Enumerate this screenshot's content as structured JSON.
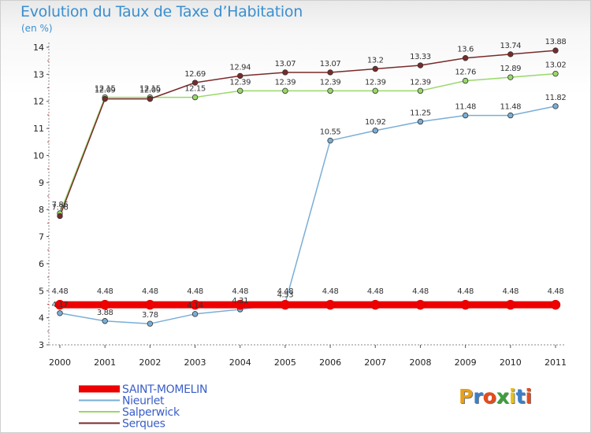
{
  "title": "Evolution du Taux de Taxe d’Habitation",
  "subtitle": "(en %)",
  "logo": {
    "text": "Proxiti",
    "letter_colors": [
      "#e8a019",
      "#3a7fc8",
      "#e84a1a",
      "#3aa03a",
      "#e8c019",
      "#3a7fc8",
      "#e84a1a"
    ]
  },
  "chart_data": {
    "type": "line",
    "x": [
      "2000",
      "2001",
      "2002",
      "2003",
      "2004",
      "2005",
      "2006",
      "2007",
      "2008",
      "2009",
      "2010",
      "2011"
    ],
    "ylim": [
      3,
      14
    ],
    "yticks": [
      "3",
      "4",
      "5",
      "6",
      "7",
      "8",
      "9",
      "10",
      "11",
      "12",
      "13",
      "14"
    ],
    "grid": false,
    "legend_position": "bottom-left",
    "series": [
      {
        "name": "SAINT-MOMELIN",
        "color": "#ee0000",
        "values": [
          4.48,
          4.48,
          4.48,
          4.48,
          4.48,
          4.48,
          4.48,
          4.48,
          4.48,
          4.48,
          4.48,
          4.48
        ],
        "labels": [
          "4.48",
          "4.48",
          "4.48",
          "4.48",
          "4.48",
          "4.48",
          "4.48",
          "4.48",
          "4.48",
          "4.48",
          "4.48",
          "4.48"
        ]
      },
      {
        "name": "Nieurlet",
        "color": "#7aaed6",
        "values": [
          4.17,
          3.88,
          3.78,
          4.14,
          4.31,
          4.53,
          10.55,
          10.92,
          11.25,
          11.48,
          11.48,
          11.82
        ],
        "labels": [
          "4.17",
          "3.88",
          "3.78",
          "4.14",
          "4.31",
          "4.53",
          "10.55",
          "10.92",
          "11.25",
          "11.48",
          "11.48",
          "11.82"
        ]
      },
      {
        "name": "Salperwick",
        "color": "#9ad86a",
        "values": [
          7.86,
          12.15,
          12.15,
          12.15,
          12.39,
          12.39,
          12.39,
          12.39,
          12.39,
          12.76,
          12.89,
          13.02
        ],
        "labels": [
          "7.86",
          "12.15",
          "12.15",
          "12.15",
          "12.39",
          "12.39",
          "12.39",
          "12.39",
          "12.39",
          "12.76",
          "12.89",
          "13.02"
        ]
      },
      {
        "name": "Serques",
        "color": "#7a2a2a",
        "values": [
          7.76,
          12.09,
          12.09,
          12.69,
          12.94,
          13.07,
          13.07,
          13.2,
          13.33,
          13.6,
          13.74,
          13.88
        ],
        "labels": [
          "7.76",
          "12.09",
          "12.09",
          "12.69",
          "12.94",
          "13.07",
          "13.07",
          "13.2",
          "13.33",
          "13.6",
          "13.74",
          "13.88"
        ]
      }
    ]
  }
}
